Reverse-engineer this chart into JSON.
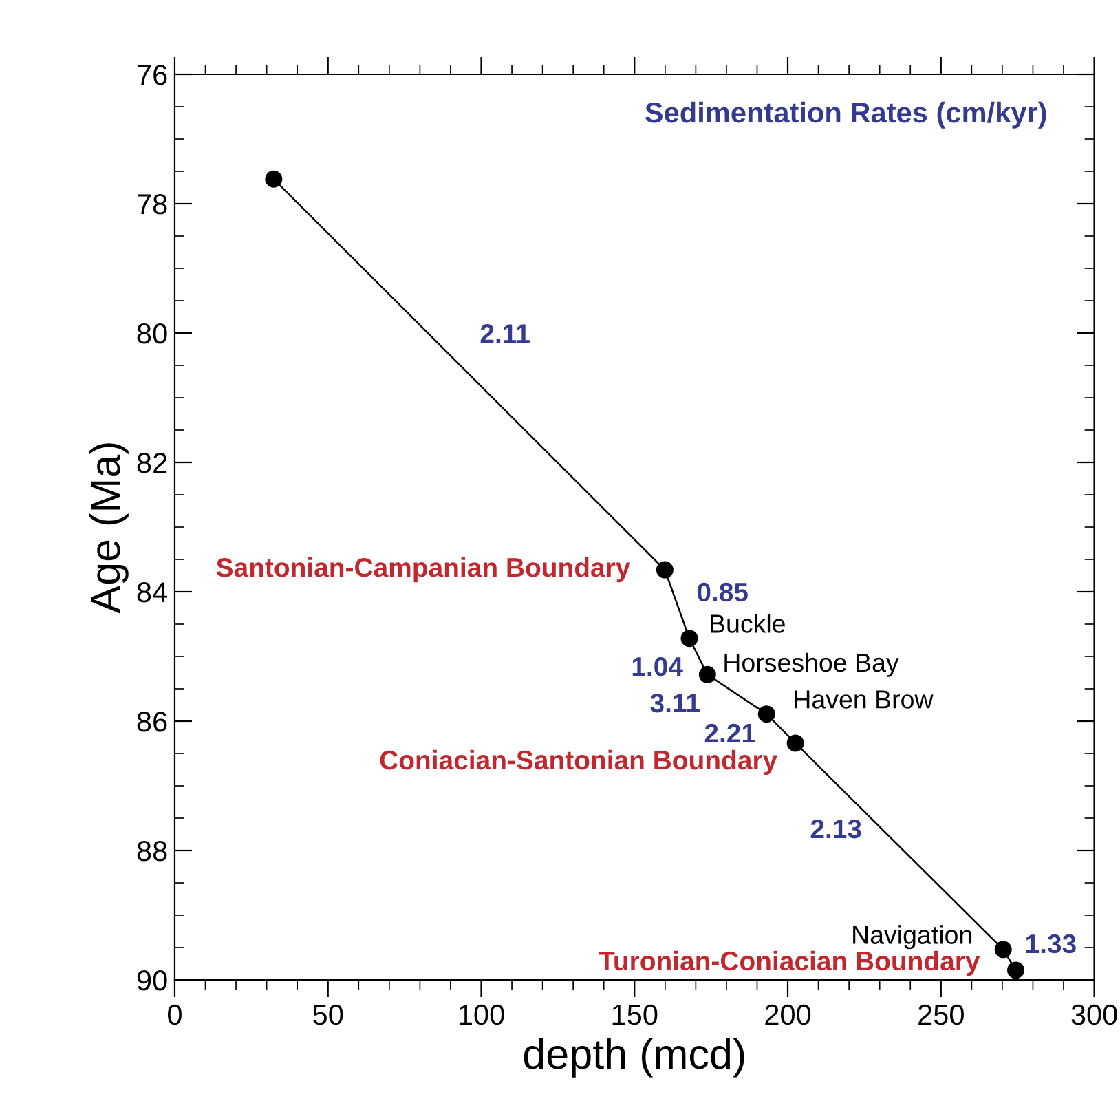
{
  "chart_data": {
    "type": "line",
    "xlabel": "depth (mcd)",
    "ylabel": "Age (Ma)",
    "x": [
      32.3,
      159.9,
      167.9,
      173.8,
      193.1,
      202.5,
      270.3,
      274.4
    ],
    "series": [
      {
        "color": "#000000",
        "values": [
          77.62,
          83.66,
          84.72,
          85.28,
          85.89,
          86.34,
          89.53,
          89.85
        ]
      }
    ],
    "marker": "circle",
    "line_style": "solid",
    "grid": false,
    "legend": false,
    "xlim": [
      0,
      300
    ],
    "xticks": [
      0,
      50,
      100,
      150,
      200,
      250,
      300
    ],
    "ylim": [
      90,
      76
    ],
    "yticks": [
      76,
      78,
      80,
      82,
      84,
      86,
      88,
      90
    ],
    "annotations": [
      "Sedimentation Rates (cm/kyr)",
      "2.11",
      "0.85",
      "1.04",
      "3.11",
      "2.21",
      "2.13",
      "1.33",
      {
        "text": "Buckle",
        "x": 167.9,
        "y": 84.72
      },
      {
        "text": "Horseshoe Bay",
        "x": 173.8,
        "y": 85.28
      },
      {
        "text": "Haven Brow",
        "x": 193.1,
        "y": 85.89
      },
      {
        "text": "Navigation",
        "x": 270.3,
        "y": 89.53
      },
      {
        "text": "Santonian-Campanian Boundary",
        "x": 159.9,
        "y": 83.66
      },
      {
        "text": "Coniacian-Santonian Boundary",
        "x": 202.5,
        "y": 86.34
      },
      {
        "text": "Turonian-Coniacian Boundary",
        "x": 274.4,
        "y": 89.85
      }
    ]
  }
}
